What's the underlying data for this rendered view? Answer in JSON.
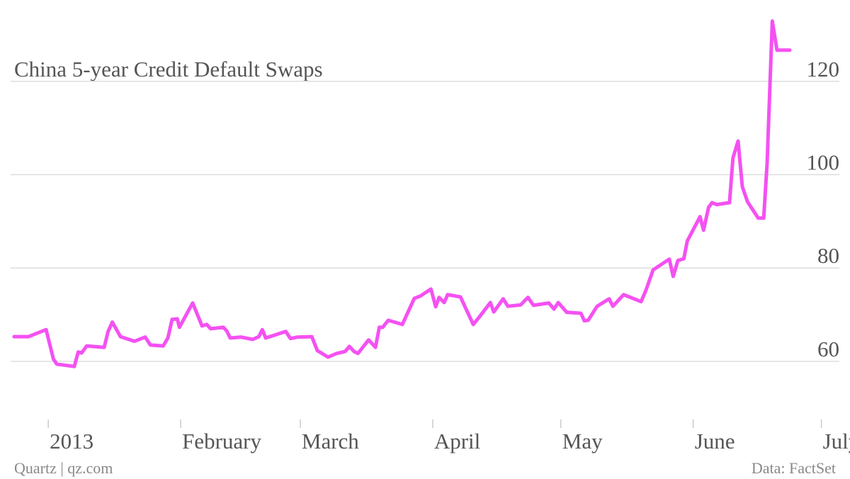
{
  "chart_data": {
    "type": "line",
    "title": "China 5-year Credit Default Swaps",
    "source": "Data: FactSet",
    "credit": "Quartz | qz.com",
    "color": "#f451f2",
    "grid": true,
    "x": [
      -8.0,
      -4.6,
      -0.5,
      1.2,
      2.0,
      6.1,
      7.0,
      7.8,
      9.0,
      13.1,
      14.0,
      15.0,
      16.9,
      20.2,
      22.7,
      23.9,
      26.9,
      28.0,
      29.0,
      30.2,
      30.7,
      33.8,
      36.0,
      37.1,
      38.0,
      41.0,
      41.8,
      42.6,
      45.1,
      47.9,
      49.3,
      50.1,
      50.9,
      55.6,
      56.7,
      58.4,
      61.7,
      63.0,
      65.5,
      67.5,
      69.5,
      70.5,
      71.6,
      72.5,
      75.0,
      76.6,
      77.5,
      78.3,
      79.6,
      82.9,
      85.7,
      87.1,
      89.6,
      90.7,
      91.5,
      92.7,
      93.5,
      96.5,
      99.5,
      101.0,
      103.5,
      104.3,
      106.5,
      107.6,
      110.6,
      112.3,
      113.6,
      117.2,
      118.4,
      119.4,
      121.4,
      124.7,
      125.5,
      126.4,
      128.5,
      131.3,
      132.2,
      134.7,
      138.8,
      139.9,
      141.6,
      145.4,
      146.3,
      147.4,
      148.8,
      149.6,
      152.6,
      153.4,
      154.6,
      155.4,
      156.5,
      159.5,
      160.3,
      161.5,
      162.5,
      163.7,
      166.2,
      167.5,
      168.3,
      169.5,
      170.6,
      173.6
    ],
    "values": [
      65.3,
      65.3,
      66.8,
      60.5,
      59.4,
      58.9,
      62.0,
      61.8,
      63.3,
      63.0,
      66.4,
      68.4,
      65.3,
      64.3,
      65.2,
      63.5,
      63.3,
      65.0,
      69.0,
      69.1,
      67.3,
      72.5,
      67.6,
      67.9,
      67.0,
      67.3,
      66.5,
      65.0,
      65.2,
      64.7,
      65.3,
      66.8,
      65.0,
      66.4,
      64.9,
      65.2,
      65.3,
      62.3,
      60.9,
      61.7,
      62.1,
      63.2,
      62.1,
      61.7,
      64.6,
      63.0,
      67.3,
      67.3,
      68.8,
      67.9,
      73.5,
      74.0,
      75.5,
      71.7,
      73.7,
      72.6,
      74.3,
      73.8,
      67.9,
      69.6,
      72.6,
      70.6,
      73.4,
      71.8,
      72.1,
      73.7,
      72.0,
      72.5,
      71.2,
      72.6,
      70.5,
      70.3,
      68.7,
      68.8,
      71.8,
      73.4,
      71.8,
      74.3,
      72.8,
      75.2,
      79.6,
      81.9,
      78.2,
      81.6,
      82.0,
      85.8,
      91.0,
      88.1,
      93.0,
      94.0,
      93.6,
      94.0,
      103.6,
      107.2,
      97.4,
      94.2,
      90.7,
      90.7,
      102.5,
      132.9,
      126.7,
      126.7
    ],
    "xlim": [
      -11.3,
      187.7
    ],
    "xticks": [
      {
        "value": 0,
        "label": "2013"
      },
      {
        "value": 31,
        "label": "February"
      },
      {
        "value": 59,
        "label": "March"
      },
      {
        "value": 90,
        "label": "April"
      },
      {
        "value": 120,
        "label": "May"
      },
      {
        "value": 151,
        "label": "June"
      },
      {
        "value": 181,
        "label": "July"
      }
    ],
    "ylim": [
      48,
      135
    ],
    "yticks": [
      60,
      80,
      100,
      120
    ]
  }
}
